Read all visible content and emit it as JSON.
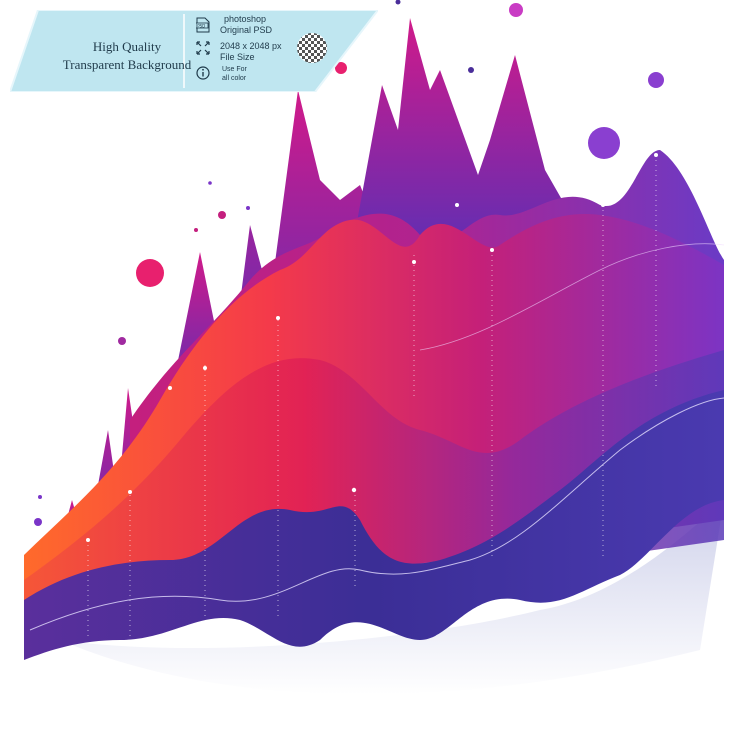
{
  "banner": {
    "line1": "High Quality",
    "line2": "Transparent Background",
    "app": "photoshop",
    "file_type": "Original PSD",
    "icon_label": "PSD",
    "dimensions": "2048 x 2048 px",
    "file_size_label": "File  Size",
    "use_for_1": "Use For",
    "use_for_2": "all color"
  },
  "icons": [
    "psd-file-icon",
    "resize-arrows-icon",
    "info-icon",
    "transparency-checker-icon"
  ],
  "colors": {
    "banner_bg": "#bfe6f0",
    "orange": "#ff6a2b",
    "red": "#f0244c",
    "magenta": "#c41f7e",
    "purple": "#7a35c8",
    "indigo": "#3b2e96",
    "dot_pink": "#e8206e",
    "dot_purple": "#8a3fd0"
  }
}
